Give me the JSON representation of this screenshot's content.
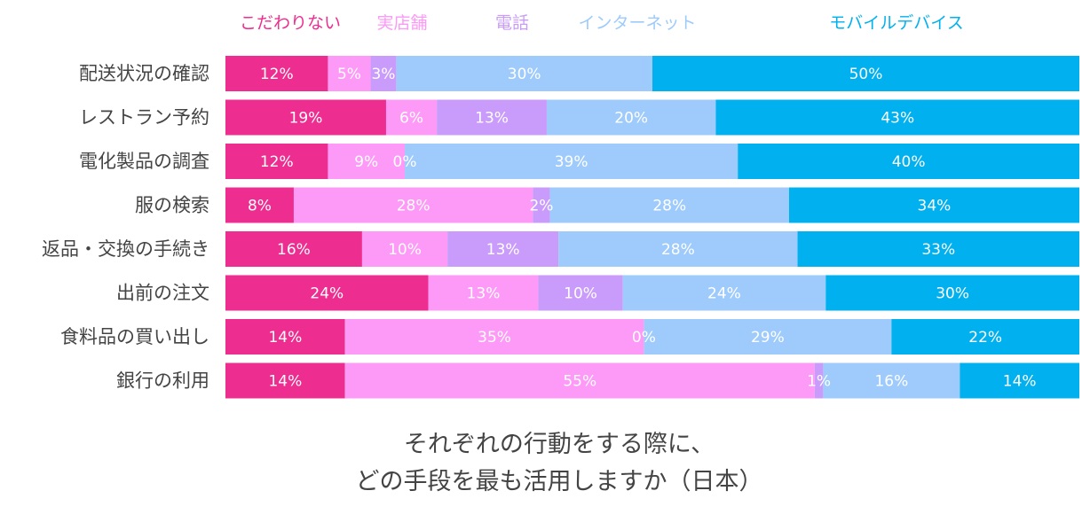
{
  "chart_data": {
    "type": "bar",
    "orientation": "horizontal",
    "stacked": true,
    "normalized": true,
    "title_lines": [
      "それぞれの行動をする際に、",
      "どの手段を最も活用しますか（日本）"
    ],
    "legend_position": "top",
    "categories": [
      "配送状況の確認",
      "レストラン予約",
      "電化製品の調査",
      "服の検索",
      "返品・交換の手続き",
      "出前の注文",
      "食料品の買い出し",
      "銀行の利用"
    ],
    "series": [
      {
        "name": "こだわりない",
        "color": "#ed2d8f",
        "values": [
          12,
          19,
          12,
          8,
          16,
          24,
          14,
          14
        ],
        "labels": [
          "12%",
          "19%",
          "12%",
          "8%",
          "16%",
          "24%",
          "14%",
          "14%"
        ]
      },
      {
        "name": "実店舗",
        "color": "#fd99f7",
        "values": [
          5,
          6,
          9,
          28,
          10,
          13,
          35,
          55
        ],
        "labels": [
          "5%",
          "6%",
          "9%",
          "28%",
          "10%",
          "13%",
          "35%",
          "55%"
        ]
      },
      {
        "name": "電話",
        "color": "#c99bfb",
        "values": [
          3,
          13,
          0,
          2,
          13,
          10,
          0,
          1
        ],
        "labels": [
          "3%",
          "13%",
          "0%",
          "2%",
          "13%",
          "10%",
          "0%",
          "1%"
        ]
      },
      {
        "name": "インターネット",
        "color": "#9ecbfb",
        "values": [
          30,
          20,
          39,
          28,
          28,
          24,
          29,
          16
        ],
        "labels": [
          "30%",
          "20%",
          "39%",
          "28%",
          "28%",
          "24%",
          "29%",
          "16%"
        ]
      },
      {
        "name": "モバイルデバイス",
        "color": "#00b0ef",
        "values": [
          50,
          43,
          40,
          34,
          33,
          30,
          22,
          14
        ],
        "labels": [
          "50%",
          "43%",
          "40%",
          "34%",
          "33%",
          "30%",
          "22%",
          "14%"
        ]
      }
    ]
  }
}
